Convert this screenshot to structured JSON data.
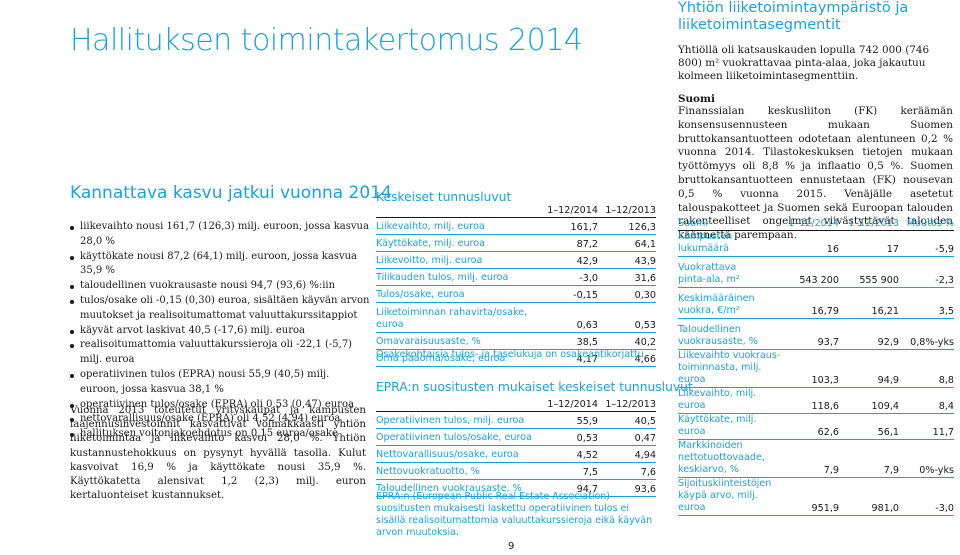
{
  "header": {
    "main_title": "Hallituksen toimintakertomus 2014",
    "right_title_line1": "Yhtiön liiketoimintaympäristö ja",
    "right_title_line2": "liiketoimintasegmentit",
    "right_intro": "Yhtiöllä oli katsauskauden lopulla 742 000 (746 800) m² vuokrattavaa pinta-alaa, joka jakautuu kolmeen liiketoimintasegmenttiin."
  },
  "left": {
    "heading": "Kannattava kasvu jatkui vuonna 2014",
    "bullets": [
      "liikevaihto nousi 161,7 (126,3) milj. euroon, jossa kasvua 28,0 %",
      "käyttökate nousi 87,2 (64,1) milj. euroon, jossa kasvua 35,9 %",
      "taloudellinen vuokrausaste nousi 94,7 (93,6) %:iin",
      "tulos/osake oli -0,15 (0,30) euroa, sisältäen käyvän arvon muutokset ja realisoitumattomat valuuttakurssitappiot",
      "käyvät arvot laskivat 40,5 (-17,6) milj. euroa",
      "realisoitumattomia valuuttakurssieroja oli -22,1 (-5,7) milj. euroa",
      "operatiivinen tulos (EPRA) nousi 55,9 (40,5) milj. euroon, jossa kasvua 38,1 %",
      "operatiivinen tulos/osake (EPRA) oli 0,53 (0,47) euroa",
      "nettovarallisuus/osake (EPRA) oli 4,52 (4,94) euroa",
      "hallituksen voitonjakoehdotus on 0,15 euroa/osake"
    ],
    "paragraph": "Vuonna 2013 toteutetut yrityskaupat ja kampusten laajennusinvestoinnit kasvattivat voimakkaasti yhtiön liiketoimintaa ja liikevaihto kasvoi 28,0 %. Yhtiön kustannustehokkuus on pysynyt hyvällä tasolla. Kulut kasvoivat 16,9 % ja käyttökate nousi 35,9 %. Käyttökatetta alensivat 1,2 (2,3) milj. euron kertaluonteiset kustannukset."
  },
  "key_figures": {
    "title": "Keskeiset tunnusluvut",
    "col1": "1–12/2014",
    "col2": "1–12/2013",
    "rows": [
      {
        "label": "Liikevaihto, milj. euroa",
        "v2014": "161,7",
        "v2013": "126,3"
      },
      {
        "label": "Käyttökate, milj. euroa",
        "v2014": "87,2",
        "v2013": "64,1"
      },
      {
        "label": "Liikevoitto, milj. euroa",
        "v2014": "42,9",
        "v2013": "43,9"
      },
      {
        "label": "Tilikauden tulos, milj. euroa",
        "v2014": "-3,0",
        "v2013": "31,6"
      },
      {
        "label": "Tulos/osake, euroa",
        "v2014": "-0,15",
        "v2013": "0,30"
      },
      {
        "label_line1": "Liiketoiminnan rahavirta/osake,",
        "label_line2": "euroa",
        "v2014": "0,63",
        "v2013": "0,53"
      },
      {
        "label": "Omavaraisuusaste, %",
        "v2014": "38,5",
        "v2013": "40,2"
      },
      {
        "label": "Oma pääoma/osake, euroa",
        "v2014": "4,17",
        "v2013": "4,66"
      }
    ],
    "footnote": "Osakekohtaisia tulos- ja taselukuja on osakeantikorjattu."
  },
  "epra": {
    "title": "EPRA:n suositusten mukaiset keskeiset tunnusluvut",
    "col1": "1–12/2014",
    "col2": "1–12/2013",
    "rows": [
      {
        "label": "Operatiivinen tulos, milj. euroa",
        "v2014": "55,9",
        "v2013": "40,5"
      },
      {
        "label": "Operatiivinen tulos/osake, euroa",
        "v2014": "0,53",
        "v2013": "0,47"
      },
      {
        "label": "Nettovarallisuus/osake, euroa",
        "v2014": "4,52",
        "v2013": "4,94"
      },
      {
        "label": "Nettovuokratuotto, %",
        "v2014": "7,5",
        "v2013": "7,6"
      },
      {
        "label": "Taloudellinen vuokrausaste, %",
        "v2014": "94,7",
        "v2013": "93,6"
      }
    ],
    "note": "EPRA:n (European Public Real Estate Association) suositusten mukaisesti laskettu operatiivinen tulos ei sisällä realisoitumattomia valuuttakurssieroja eikä käyvän arvon muutoksia."
  },
  "suomi": {
    "heading": "Suomi",
    "text": "Finanssialan keskusliiton (FK) keräämän konsensusennusteen mukaan Suomen bruttokansantuotteen odotetaan alentuneen 0,2 % vuonna 2014. Tilastokeskuksen tietojen mukaan työttömyys oli 8,8 % ja inflaatio 0,5 %. Suomen bruttokansantuotteen ennustetaan (FK) nousevan 0,5 % vuonna 2015. Venäjälle asetetut talouspakotteet ja Suomen sekä Euroopan talouden rakenteelliset ongelmat viivästyttävät talouden käännettä parempaan.",
    "table": {
      "col0": "Suomi",
      "col1": "1–12/2014",
      "col2": "1–12/2013",
      "col3": "Muutos %",
      "rows": [
        {
          "label": "Kampusten lukumäärä",
          "v2014": "16",
          "v2013": "17",
          "change": "-5,9"
        },
        {
          "label_line1": "Vuokrattava",
          "label_line2": "pinta-ala, m²",
          "v2014": "543 200",
          "v2013": "555 900",
          "change": "-2,3"
        },
        {
          "label_line1": "Keskimääräinen",
          "label_line2": "vuokra, €/m²",
          "v2014": "16,79",
          "v2013": "16,21",
          "change": "3,5"
        },
        {
          "label_line1": "Taloudellinen",
          "label_line2": "vuokrausaste, %",
          "v2014": "93,7",
          "v2013": "92,9",
          "change": "0,8%-yks"
        },
        {
          "label_line1": "Liikevaihto vuokraus-",
          "label_line2": "toiminnasta, milj. euroa",
          "v2014": "103,3",
          "v2013": "94,9",
          "change": "8,8"
        },
        {
          "label": "Liikevaihto, milj. euroa",
          "v2014": "118,6",
          "v2013": "109,4",
          "change": "8,4"
        },
        {
          "label": "Käyttökate, milj. euroa",
          "v2014": "62,6",
          "v2013": "56,1",
          "change": "11,7"
        },
        {
          "label_line1": "Markkinoiden",
          "label_line2": "nettotuottovaade,",
          "label_line3": "keskiarvo, %",
          "v2014": "7,9",
          "v2013": "7,9",
          "change": "0%-yks"
        },
        {
          "label_line1": "Sijoituskiinteistöjen",
          "label_line2": "käypä arvo, milj. euroa",
          "v2014": "951,9",
          "v2013": "981,0",
          "change": "-3,0"
        }
      ]
    }
  },
  "page_number": "9"
}
